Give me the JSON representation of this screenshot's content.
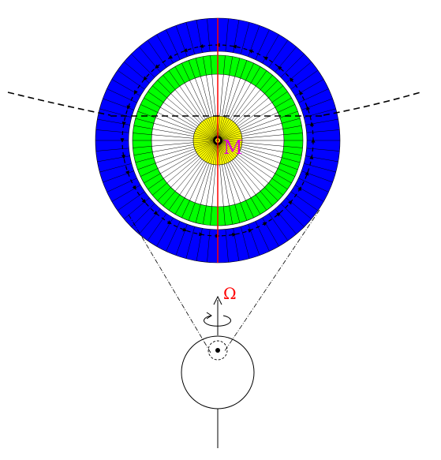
{
  "labels": {
    "omega": "Ω",
    "m": "M"
  },
  "colors": {
    "outer_ring": "#0000ff",
    "middle_ring": "#00ff00",
    "core": "#ffff00",
    "axis": "#ff0000",
    "m_label": "#dd00dd",
    "omega_label": "#ff0000",
    "line": "#000000"
  },
  "rings": {
    "outer_segments": 72,
    "middle_segments": 72,
    "spokes": 72,
    "core_rays": 64
  }
}
